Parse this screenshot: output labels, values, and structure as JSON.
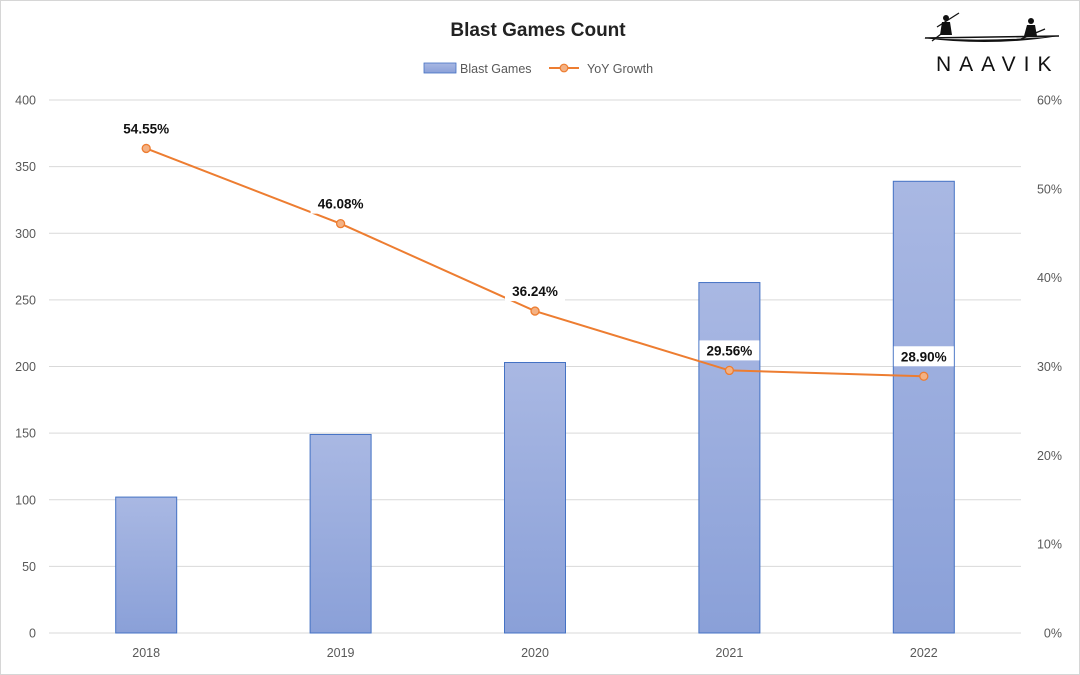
{
  "chart_data": {
    "type": "bar",
    "title": "Blast Games Count",
    "categories": [
      "2018",
      "2019",
      "2020",
      "2021",
      "2022"
    ],
    "series": [
      {
        "name": "Blast Games",
        "type": "bar",
        "axis": "left",
        "values": [
          102,
          149,
          203,
          263,
          339
        ]
      },
      {
        "name": "YoY Growth",
        "type": "line",
        "axis": "right",
        "values": [
          54.55,
          46.08,
          36.24,
          29.56,
          28.9
        ],
        "labels": [
          "54.55%",
          "46.08%",
          "36.24%",
          "29.56%",
          "28.90%"
        ]
      }
    ],
    "y_left": {
      "min": 0,
      "max": 400,
      "ticks": [
        "0",
        "50",
        "100",
        "150",
        "200",
        "250",
        "300",
        "350",
        "400"
      ]
    },
    "y_right": {
      "min": 0,
      "max": 60,
      "ticks": [
        "0%",
        "10%",
        "20%",
        "30%",
        "40%",
        "50%",
        "60%"
      ]
    },
    "grid": true,
    "legend": "top-center"
  },
  "brand": {
    "name": "NAAVIK",
    "icon": "boat-rowers-icon"
  },
  "colors": {
    "bar_top": "#a9b8e3",
    "bar_bottom": "#8aa0d8",
    "bar_stroke": "#4472c4",
    "line": "#ed7d31",
    "marker_fill": "#f4b183",
    "grid": "#d9d9d9"
  }
}
